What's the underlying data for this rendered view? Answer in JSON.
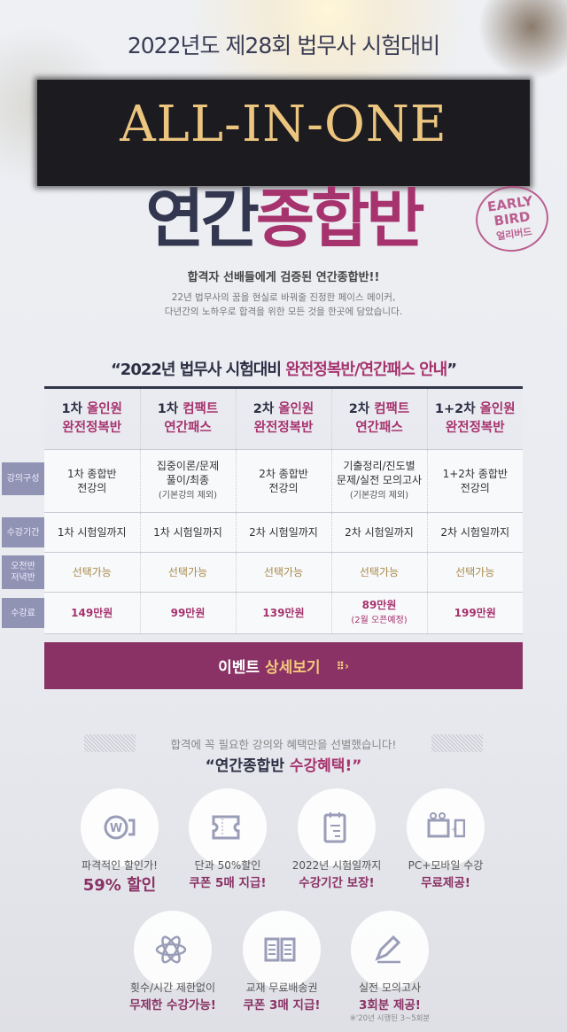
{
  "hero": {
    "top_title": "2022년도 제28회 법무사 시험대비",
    "banner": "ALL-IN-ONE",
    "title_a": "연간",
    "title_b": "종합반",
    "stamp_top": "EARLY",
    "stamp_mid": "BIRD",
    "stamp_bottom": "얼리버드",
    "sub_headline": "합격자 선배들에게 검증된 연간종합반!!",
    "sub_line1": "22년 법무사의 꿈을 현실로 바꿔줄 진정한 페이스 메이커,",
    "sub_line2": "다년간의 노하우로 합격을 위한 모든 것을 한곳에 담았습니다."
  },
  "table": {
    "title_a": "“2022년 법무사 시험대비 ",
    "title_b": "완전정복반/연간패스 안내",
    "title_c": "”",
    "row_labels": [
      "강의구성",
      "수강기간",
      "오전반 저녁반",
      "수강료"
    ],
    "columns": [
      {
        "h1a": "1차 ",
        "h1b": "올인원",
        "h2": "완전정복반",
        "comp": "1차 종합반",
        "comp2": "전강의",
        "note": "",
        "period": "1차 시험일까지",
        "option": "선택가능",
        "price": "149만원",
        "price_note": ""
      },
      {
        "h1a": "1차 ",
        "h1b": "컴팩트",
        "h2": "연간패스",
        "comp": "집중이론/문제",
        "comp2": "풀이/최종",
        "note": "(기본강의 제외)",
        "period": "1차 시험일까지",
        "option": "선택가능",
        "price": "99만원",
        "price_note": ""
      },
      {
        "h1a": "2차 ",
        "h1b": "올인원",
        "h2": "완전정복반",
        "comp": "2차 종합반",
        "comp2": "전강의",
        "note": "",
        "period": "2차 시험일까지",
        "option": "선택가능",
        "price": "139만원",
        "price_note": ""
      },
      {
        "h1a": "2차 ",
        "h1b": "컴팩트",
        "h2": "연간패스",
        "comp": "기출정리/진도별",
        "comp2": "문제/실전 모의고사",
        "note": "(기본강의 제외)",
        "period": "2차 시험일까지",
        "option": "선택가능",
        "price": "89만원",
        "price_note": "(2월 오픈예정)"
      },
      {
        "h1a": "1+2차 ",
        "h1b": "올인원",
        "h2": "완전정복반",
        "comp": "1+2차 종합반",
        "comp2": "전강의",
        "note": "",
        "period": "2차 시험일까지",
        "option": "선택가능",
        "price": "199만원",
        "price_note": ""
      }
    ]
  },
  "cta": {
    "label_a": "이벤트",
    "label_b": "상세보기"
  },
  "benefits": {
    "subtitle": "합격에 꼭 필요한 강의와 혜택만을 선별했습니다!",
    "title_a": "“연간종합반 ",
    "title_b": "수강혜택!”",
    "items": [
      {
        "icon": "won-coin-icon",
        "line1": "파격적인 할인가!",
        "line2": "59% 할인",
        "note": ""
      },
      {
        "icon": "ticket-icon",
        "line1": "단과 50%할인",
        "line2": "쿠폰 5매 지급!",
        "note": ""
      },
      {
        "icon": "calendar-icon",
        "line1": "2022년 시험일까지",
        "line2": "수강기간 보장!",
        "note": ""
      },
      {
        "icon": "pc-mobile-icon",
        "line1": "PC+모바일 수강",
        "line2": "무료제공!",
        "note": ""
      },
      {
        "icon": "atom-icon",
        "line1": "횟수/시간 제한없이",
        "line2": "무제한 수강가능!",
        "note": ""
      },
      {
        "icon": "book-icon",
        "line1": "교재 무료배송권",
        "line2": "쿠폰 3매 지급!",
        "note": ""
      },
      {
        "icon": "pencil-icon",
        "line1": "실전 모의고사",
        "line2": "3회분 제공!",
        "note": "※'20년 시행된 3~5회분"
      }
    ]
  },
  "colors": {
    "accent": "#8a3265",
    "gold": "#ecc57f",
    "navy": "#33364f"
  }
}
